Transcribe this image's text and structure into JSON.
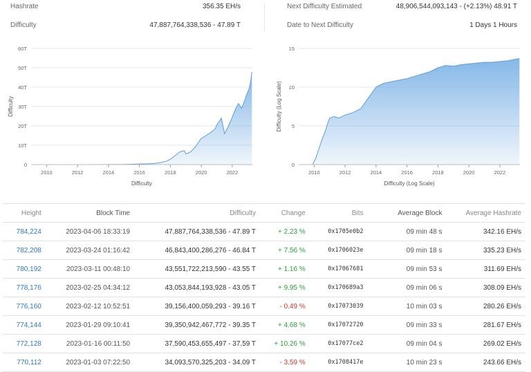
{
  "stats": {
    "hashrate_label": "Hashrate",
    "hashrate_value": "356.35 EH/s",
    "difficulty_label": "Difficulty",
    "difficulty_value": "47,887,764,338,536 - 47.89 T",
    "next_label": "Next Difficulty Estimated",
    "next_value": "48,906,544,093,143 - (+2.13%) 48.91 T",
    "date_label": "Date to Next Difficulty",
    "date_value": "1 Days 1 Hours"
  },
  "chart_data": [
    {
      "type": "area",
      "title": "",
      "xlabel": "Difficulty",
      "ylabel": "Difficulty",
      "x_ticks": [
        "2010",
        "2012",
        "2014",
        "2016",
        "2018",
        "2020",
        "2022"
      ],
      "y_ticks": [
        "0",
        "10T",
        "20T",
        "30T",
        "40T",
        "50T",
        "60T"
      ],
      "xlim": [
        2009.0,
        2023.3
      ],
      "ylim": [
        0,
        60
      ],
      "unit": "T",
      "grid": true,
      "color": "#7fb3e6",
      "x": [
        2009.0,
        2013.0,
        2014.0,
        2015.0,
        2016.0,
        2016.5,
        2017.0,
        2017.5,
        2017.8,
        2018.0,
        2018.3,
        2018.6,
        2018.9,
        2019.0,
        2019.3,
        2019.6,
        2019.9,
        2020.0,
        2020.3,
        2020.6,
        2020.9,
        2021.0,
        2021.3,
        2021.5,
        2021.7,
        2021.9,
        2022.0,
        2022.2,
        2022.4,
        2022.6,
        2022.8,
        2022.9,
        2023.0,
        2023.1,
        2023.2,
        2023.27
      ],
      "y": [
        0,
        0.01,
        0.05,
        0.1,
        0.3,
        0.4,
        0.6,
        1.2,
        1.9,
        2.8,
        4.5,
        6.5,
        7.2,
        5.5,
        6.5,
        9.0,
        12.5,
        13.5,
        15.0,
        16.5,
        18.5,
        20.5,
        24.0,
        16.0,
        19.0,
        22.5,
        24.5,
        28.5,
        31.5,
        29.0,
        33.0,
        35.5,
        37.5,
        39.5,
        43.5,
        47.9
      ]
    },
    {
      "type": "area",
      "title": "",
      "xlabel": "Difficulty (Log Scale)",
      "ylabel": "Difficulty (Log Scale)",
      "x_ticks": [
        "2010",
        "2012",
        "2014",
        "2016",
        "2018",
        "2020",
        "2022"
      ],
      "y_ticks": [
        "0",
        "5",
        "10",
        "15"
      ],
      "xlim": [
        2009.0,
        2023.3
      ],
      "ylim": [
        0,
        15
      ],
      "grid": true,
      "color": "#7fb3e6",
      "x": [
        2009.0,
        2009.9,
        2010.1,
        2010.3,
        2010.5,
        2010.7,
        2010.9,
        2011.0,
        2011.3,
        2011.6,
        2012.0,
        2012.5,
        2013.0,
        2013.5,
        2014.0,
        2014.5,
        2015.0,
        2015.5,
        2016.0,
        2016.5,
        2017.0,
        2017.5,
        2018.0,
        2018.5,
        2019.0,
        2019.5,
        2020.0,
        2020.5,
        2021.0,
        2021.5,
        2022.0,
        2022.5,
        2023.0,
        2023.27
      ],
      "y": [
        0,
        0,
        0.8,
        2.0,
        3.2,
        4.2,
        5.5,
        6.0,
        6.2,
        6.0,
        6.4,
        6.7,
        7.2,
        8.6,
        10.0,
        10.5,
        10.7,
        10.9,
        11.1,
        11.4,
        11.7,
        12.0,
        12.5,
        12.8,
        12.7,
        12.9,
        13.0,
        13.1,
        13.2,
        13.2,
        13.3,
        13.4,
        13.6,
        13.7
      ]
    }
  ],
  "table": {
    "headers": [
      "Height",
      "Block Time",
      "Difficulty",
      "Change",
      "Bits",
      "Average Block",
      "Average Hashrate"
    ],
    "rows": [
      {
        "height": "784,224",
        "time": "2023-04-06 18:33:19",
        "difficulty": "47,887,764,338,536 - 47.89 T",
        "change": "+ 2.23 %",
        "dir": "pos",
        "bits": "0x1705e0b2",
        "avg": "09 min 48 s",
        "hashrate": "342.16 EH/s"
      },
      {
        "height": "782,208",
        "time": "2023-03-24 01:16:42",
        "difficulty": "46,843,400,286,276 - 46.84 T",
        "change": "+ 7.56 %",
        "dir": "pos",
        "bits": "0x1706023e",
        "avg": "09 min 18 s",
        "hashrate": "335.23 EH/s"
      },
      {
        "height": "780,192",
        "time": "2023-03-11 00:48:10",
        "difficulty": "43,551,722,213,590 - 43.55 T",
        "change": "+ 1.16 %",
        "dir": "pos",
        "bits": "0x17067681",
        "avg": "09 min 53 s",
        "hashrate": "311.69 EH/s"
      },
      {
        "height": "778,176",
        "time": "2023-02-25 04:34:12",
        "difficulty": "43,053,844,193,928 - 43.05 T",
        "change": "+ 9.95 %",
        "dir": "pos",
        "bits": "0x170689a3",
        "avg": "09 min 06 s",
        "hashrate": "308.09 EH/s"
      },
      {
        "height": "776,160",
        "time": "2023-02-12 10:52:51",
        "difficulty": "39,156,400,059,293 - 39.16 T",
        "change": "- 0.49 %",
        "dir": "neg",
        "bits": "0x17073039",
        "avg": "10 min 03 s",
        "hashrate": "280.26 EH/s"
      },
      {
        "height": "774,144",
        "time": "2023-01-29 09:10:41",
        "difficulty": "39,350,942,467,772 - 39.35 T",
        "change": "+ 4.68 %",
        "dir": "pos",
        "bits": "0x17072720",
        "avg": "09 min 33 s",
        "hashrate": "281.67 EH/s"
      },
      {
        "height": "772,128",
        "time": "2023-01-16 00:11:50",
        "difficulty": "37,590,453,655,497 - 37.59 T",
        "change": "+ 10.26 %",
        "dir": "pos",
        "bits": "0x17077ce2",
        "avg": "09 min 04 s",
        "hashrate": "269.02 EH/s"
      },
      {
        "height": "770,112",
        "time": "2023-01-03 07:22:50",
        "difficulty": "34,093,570,325,203 - 34.09 T",
        "change": "- 3.59 %",
        "dir": "neg",
        "bits": "0x1708417e",
        "avg": "10 min 23 s",
        "hashrate": "243.66 EH/s"
      }
    ]
  }
}
